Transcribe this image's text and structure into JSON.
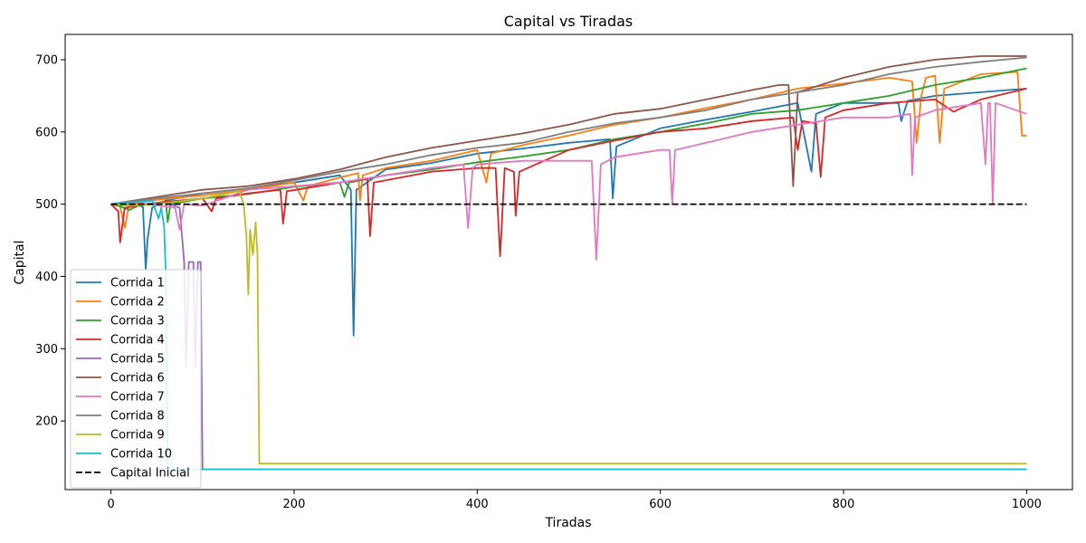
{
  "chart_data": {
    "type": "line",
    "title": "Capital vs Tiradas",
    "xlabel": "Tiradas",
    "ylabel": "Capital",
    "xlim": [
      -50,
      1050
    ],
    "ylim": [
      105,
      735
    ],
    "xticks": [
      0,
      200,
      400,
      600,
      800,
      1000
    ],
    "yticks": [
      200,
      300,
      400,
      500,
      600,
      700
    ],
    "grid": false,
    "legend_position": "lower-left",
    "series": [
      {
        "name": "Corrida 1",
        "color": "#1f77b4",
        "points": [
          [
            0,
            500
          ],
          [
            20,
            503
          ],
          [
            35,
            496
          ],
          [
            38,
            410
          ],
          [
            40,
            452
          ],
          [
            45,
            495
          ],
          [
            60,
            505
          ],
          [
            80,
            510
          ],
          [
            100,
            515
          ],
          [
            150,
            522
          ],
          [
            200,
            530
          ],
          [
            250,
            540
          ],
          [
            262,
            520
          ],
          [
            265,
            318
          ],
          [
            268,
            520
          ],
          [
            300,
            548
          ],
          [
            350,
            557
          ],
          [
            400,
            570
          ],
          [
            450,
            577
          ],
          [
            500,
            585
          ],
          [
            545,
            590
          ],
          [
            548,
            508
          ],
          [
            552,
            580
          ],
          [
            600,
            605
          ],
          [
            650,
            617
          ],
          [
            700,
            628
          ],
          [
            750,
            640
          ],
          [
            765,
            545
          ],
          [
            770,
            625
          ],
          [
            800,
            640
          ],
          [
            860,
            640
          ],
          [
            863,
            615
          ],
          [
            870,
            643
          ],
          [
            900,
            650
          ],
          [
            950,
            655
          ],
          [
            1000,
            660
          ]
        ]
      },
      {
        "name": "Corrida 2",
        "color": "#ff7f0e",
        "points": [
          [
            0,
            500
          ],
          [
            10,
            497
          ],
          [
            15,
            467
          ],
          [
            20,
            500
          ],
          [
            50,
            506
          ],
          [
            100,
            512
          ],
          [
            150,
            520
          ],
          [
            200,
            530
          ],
          [
            210,
            505
          ],
          [
            215,
            525
          ],
          [
            250,
            537
          ],
          [
            270,
            543
          ],
          [
            272,
            505
          ],
          [
            275,
            540
          ],
          [
            300,
            550
          ],
          [
            350,
            560
          ],
          [
            400,
            575
          ],
          [
            410,
            530
          ],
          [
            415,
            570
          ],
          [
            450,
            582
          ],
          [
            500,
            595
          ],
          [
            550,
            610
          ],
          [
            600,
            620
          ],
          [
            650,
            633
          ],
          [
            700,
            645
          ],
          [
            750,
            660
          ],
          [
            800,
            667
          ],
          [
            850,
            675
          ],
          [
            875,
            670
          ],
          [
            880,
            585
          ],
          [
            885,
            650
          ],
          [
            890,
            675
          ],
          [
            900,
            678
          ],
          [
            905,
            585
          ],
          [
            910,
            660
          ],
          [
            950,
            680
          ],
          [
            990,
            683
          ],
          [
            995,
            595
          ],
          [
            1000,
            595
          ]
        ]
      },
      {
        "name": "Corrida 3",
        "color": "#2ca02c",
        "points": [
          [
            0,
            500
          ],
          [
            10,
            497
          ],
          [
            20,
            492
          ],
          [
            30,
            498
          ],
          [
            60,
            503
          ],
          [
            62,
            475
          ],
          [
            65,
            500
          ],
          [
            100,
            508
          ],
          [
            150,
            514
          ],
          [
            200,
            524
          ],
          [
            250,
            530
          ],
          [
            255,
            510
          ],
          [
            260,
            530
          ],
          [
            300,
            540
          ],
          [
            350,
            548
          ],
          [
            400,
            558
          ],
          [
            450,
            566
          ],
          [
            500,
            575
          ],
          [
            550,
            590
          ],
          [
            600,
            600
          ],
          [
            650,
            612
          ],
          [
            700,
            625
          ],
          [
            750,
            630
          ],
          [
            800,
            640
          ],
          [
            850,
            650
          ],
          [
            900,
            665
          ],
          [
            950,
            675
          ],
          [
            1000,
            688
          ]
        ]
      },
      {
        "name": "Corrida 4",
        "color": "#d62728",
        "points": [
          [
            0,
            500
          ],
          [
            8,
            490
          ],
          [
            10,
            447
          ],
          [
            15,
            495
          ],
          [
            50,
            502
          ],
          [
            100,
            508
          ],
          [
            110,
            490
          ],
          [
            115,
            508
          ],
          [
            150,
            515
          ],
          [
            185,
            520
          ],
          [
            188,
            473
          ],
          [
            192,
            518
          ],
          [
            250,
            530
          ],
          [
            280,
            535
          ],
          [
            283,
            456
          ],
          [
            287,
            530
          ],
          [
            350,
            545
          ],
          [
            400,
            550
          ],
          [
            420,
            550
          ],
          [
            425,
            428
          ],
          [
            430,
            550
          ],
          [
            440,
            545
          ],
          [
            442,
            484
          ],
          [
            446,
            545
          ],
          [
            500,
            575
          ],
          [
            550,
            588
          ],
          [
            600,
            600
          ],
          [
            650,
            605
          ],
          [
            700,
            615
          ],
          [
            745,
            620
          ],
          [
            750,
            575
          ],
          [
            755,
            615
          ],
          [
            770,
            612
          ],
          [
            775,
            538
          ],
          [
            780,
            620
          ],
          [
            800,
            630
          ],
          [
            850,
            640
          ],
          [
            900,
            645
          ],
          [
            920,
            628
          ],
          [
            950,
            645
          ],
          [
            1000,
            660
          ]
        ]
      },
      {
        "name": "Corrida 5",
        "color": "#9467bd",
        "points": [
          [
            0,
            500
          ],
          [
            30,
            500
          ],
          [
            60,
            502
          ],
          [
            75,
            495
          ],
          [
            80,
            420
          ],
          [
            82,
            275
          ],
          [
            85,
            420
          ],
          [
            90,
            420
          ],
          [
            92,
            275
          ],
          [
            95,
            420
          ],
          [
            98,
            420
          ],
          [
            100,
            133
          ],
          [
            1000,
            133
          ]
        ]
      },
      {
        "name": "Corrida 6",
        "color": "#8c564b",
        "points": [
          [
            0,
            500
          ],
          [
            50,
            510
          ],
          [
            100,
            520
          ],
          [
            150,
            525
          ],
          [
            200,
            535
          ],
          [
            250,
            548
          ],
          [
            300,
            565
          ],
          [
            350,
            578
          ],
          [
            400,
            588
          ],
          [
            450,
            598
          ],
          [
            500,
            610
          ],
          [
            550,
            625
          ],
          [
            600,
            632
          ],
          [
            650,
            645
          ],
          [
            700,
            658
          ],
          [
            730,
            665
          ],
          [
            740,
            665
          ],
          [
            745,
            525
          ],
          [
            750,
            655
          ],
          [
            800,
            675
          ],
          [
            850,
            690
          ],
          [
            900,
            700
          ],
          [
            950,
            705
          ],
          [
            1000,
            705
          ]
        ]
      },
      {
        "name": "Corrida 7",
        "color": "#e377c2",
        "points": [
          [
            0,
            500
          ],
          [
            40,
            500
          ],
          [
            70,
            495
          ],
          [
            75,
            465
          ],
          [
            80,
            500
          ],
          [
            100,
            498
          ],
          [
            150,
            520
          ],
          [
            200,
            525
          ],
          [
            250,
            530
          ],
          [
            300,
            540
          ],
          [
            350,
            550
          ],
          [
            385,
            555
          ],
          [
            390,
            467
          ],
          [
            395,
            550
          ],
          [
            400,
            555
          ],
          [
            450,
            560
          ],
          [
            500,
            560
          ],
          [
            525,
            560
          ],
          [
            530,
            423
          ],
          [
            535,
            555
          ],
          [
            550,
            565
          ],
          [
            600,
            575
          ],
          [
            610,
            575
          ],
          [
            613,
            500
          ],
          [
            616,
            575
          ],
          [
            650,
            585
          ],
          [
            700,
            600
          ],
          [
            750,
            610
          ],
          [
            800,
            620
          ],
          [
            850,
            620
          ],
          [
            873,
            625
          ],
          [
            875,
            540
          ],
          [
            878,
            620
          ],
          [
            900,
            630
          ],
          [
            950,
            640
          ],
          [
            955,
            555
          ],
          [
            958,
            640
          ],
          [
            960,
            640
          ],
          [
            963,
            500
          ],
          [
            966,
            640
          ],
          [
            1000,
            625
          ]
        ]
      },
      {
        "name": "Corrida 8",
        "color": "#7f7f7f",
        "points": [
          [
            0,
            500
          ],
          [
            50,
            508
          ],
          [
            100,
            515
          ],
          [
            150,
            522
          ],
          [
            200,
            533
          ],
          [
            250,
            545
          ],
          [
            300,
            555
          ],
          [
            350,
            568
          ],
          [
            400,
            578
          ],
          [
            450,
            585
          ],
          [
            500,
            600
          ],
          [
            550,
            612
          ],
          [
            600,
            620
          ],
          [
            650,
            630
          ],
          [
            700,
            645
          ],
          [
            750,
            655
          ],
          [
            800,
            665
          ],
          [
            850,
            680
          ],
          [
            900,
            690
          ],
          [
            950,
            697
          ],
          [
            1000,
            703
          ]
        ]
      },
      {
        "name": "Corrida 9",
        "color": "#bcbd22",
        "points": [
          [
            0,
            500
          ],
          [
            20,
            498
          ],
          [
            50,
            500
          ],
          [
            100,
            508
          ],
          [
            140,
            518
          ],
          [
            145,
            500
          ],
          [
            148,
            455
          ],
          [
            150,
            375
          ],
          [
            152,
            465
          ],
          [
            155,
            430
          ],
          [
            158,
            475
          ],
          [
            160,
            430
          ],
          [
            162,
            141
          ],
          [
            1000,
            141
          ]
        ]
      },
      {
        "name": "Corrida 10",
        "color": "#17becf",
        "points": [
          [
            0,
            500
          ],
          [
            20,
            502
          ],
          [
            45,
            505
          ],
          [
            52,
            480
          ],
          [
            55,
            495
          ],
          [
            58,
            470
          ],
          [
            60,
            400
          ],
          [
            62,
            133
          ],
          [
            1000,
            133
          ]
        ]
      }
    ],
    "reference_line": {
      "name": "Capital Inicial",
      "y": 500,
      "x_range": [
        0,
        1000
      ],
      "color": "#000000",
      "style": "dashed"
    }
  }
}
